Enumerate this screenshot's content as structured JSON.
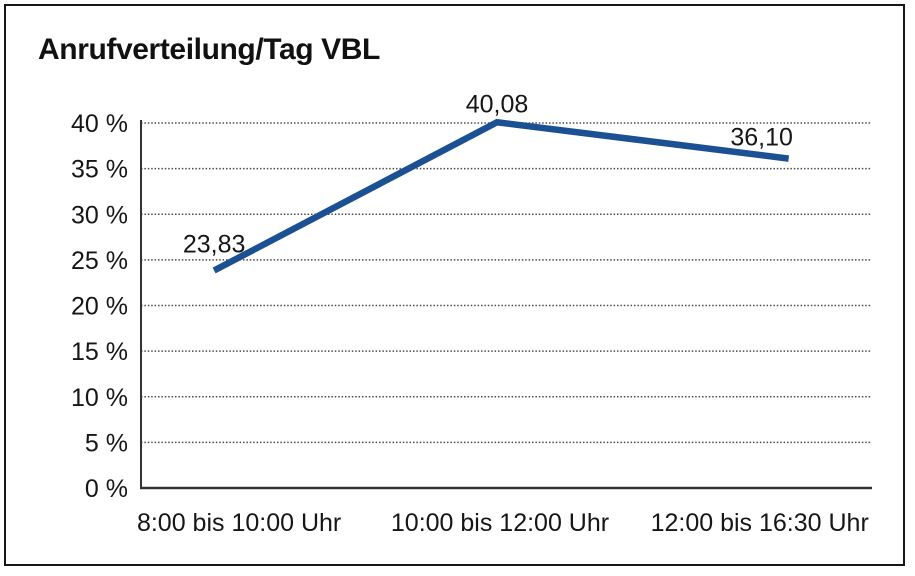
{
  "title": "Anrufverteilung/Tag VBL",
  "chart_data": {
    "type": "line",
    "title": "Anrufverteilung/Tag VBL",
    "categories": [
      "8:00 bis 10:00 Uhr",
      "10:00 bis 12:00 Uhr",
      "12:00 bis 16:30 Uhr"
    ],
    "series": [
      {
        "name": "Anrufverteilung",
        "values": [
          23.83,
          40.08,
          36.1
        ],
        "data_labels": [
          "23,83",
          "40,08",
          "36,10"
        ]
      }
    ],
    "ylabel": "",
    "xlabel": "",
    "ylim": [
      0,
      40
    ],
    "ytick_step": 5,
    "ytick_labels": [
      "0 %",
      "5 %",
      "10 %",
      "15 %",
      "20 %",
      "25 %",
      "30 %",
      "35 %",
      "40 %"
    ],
    "grid": "horizontal-dotted",
    "legend": "none",
    "colors": {
      "line": "#1b5193",
      "text": "#161616",
      "axis": "#333333",
      "gridline": "#4a4a4a",
      "frame_border": "#161616",
      "background": "#ffffff"
    }
  }
}
